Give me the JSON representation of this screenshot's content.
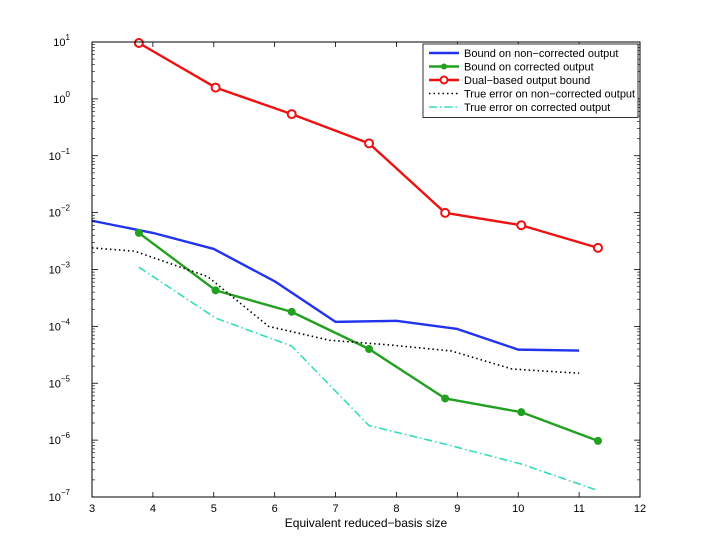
{
  "chart_data": {
    "type": "line",
    "title": "",
    "xlabel": "Equivalent reduced−basis size",
    "ylabel": "",
    "xlim": [
      3,
      12
    ],
    "ylim": [
      1e-07,
      10
    ],
    "yscale": "log",
    "grid": false,
    "legend_position": "top-right",
    "x_ticks": [
      "3",
      "4",
      "5",
      "6",
      "7",
      "8",
      "9",
      "10",
      "11",
      "12"
    ],
    "y_ticks": [
      {
        "base": "10",
        "exp": "−7",
        "value": 1e-07
      },
      {
        "base": "10",
        "exp": "−6",
        "value": 1e-06
      },
      {
        "base": "10",
        "exp": "−5",
        "value": 1e-05
      },
      {
        "base": "10",
        "exp": "−4",
        "value": 0.0001
      },
      {
        "base": "10",
        "exp": "−3",
        "value": 0.001
      },
      {
        "base": "10",
        "exp": "−2",
        "value": 0.01
      },
      {
        "base": "10",
        "exp": "−1",
        "value": 0.1
      },
      {
        "base": "10",
        "exp": "0",
        "value": 1
      },
      {
        "base": "10",
        "exp": "1",
        "value": 10
      }
    ],
    "series": [
      {
        "name": "Bound on non−corrected output",
        "color": "#2233ee",
        "style": "solid",
        "marker": "none",
        "x": [
          3,
          4,
          5,
          6,
          7,
          8,
          9,
          10,
          11
        ],
        "y": [
          0.0072,
          0.0044,
          0.0023,
          0.00062,
          0.00012,
          0.000125,
          9e-05,
          3.9e-05,
          3.75e-05
        ]
      },
      {
        "name": "Bound on corrected output",
        "color": "#22a020",
        "style": "solid",
        "marker": "dot",
        "x": [
          3.77,
          5.03,
          6.28,
          7.55,
          8.8,
          10.05,
          11.31
        ],
        "y": [
          0.0044,
          0.00043,
          0.00018,
          4e-05,
          5.4e-06,
          3.1e-06,
          9.7e-07
        ]
      },
      {
        "name": "Dual−based output bound",
        "color": "#ee1111",
        "style": "solid",
        "marker": "circle",
        "x": [
          3.77,
          5.03,
          6.28,
          7.55,
          8.8,
          10.05,
          11.31
        ],
        "y": [
          9.6,
          1.58,
          0.54,
          0.165,
          0.0099,
          0.006,
          0.0024
        ]
      },
      {
        "name": "True error on non−corrected output",
        "color": "#000000",
        "style": "dotted",
        "marker": "none",
        "x": [
          3,
          3.7,
          4.9,
          5.9,
          6.9,
          7.9,
          8.9,
          9.9,
          11
        ],
        "y": [
          0.0024,
          0.0021,
          0.00075,
          0.0001,
          5.7e-05,
          4.7e-05,
          3.7e-05,
          1.78e-05,
          1.5e-05
        ]
      },
      {
        "name": "True error on corrected output",
        "color": "#33ddbb",
        "style": "dashdot",
        "marker": "none",
        "x": [
          3.77,
          5.03,
          6.28,
          7.55,
          8.8,
          10.05,
          11.31
        ],
        "y": [
          0.0011,
          0.00014,
          4.5e-05,
          1.8e-06,
          8.5e-07,
          3.8e-07,
          1.3e-07
        ]
      }
    ]
  }
}
